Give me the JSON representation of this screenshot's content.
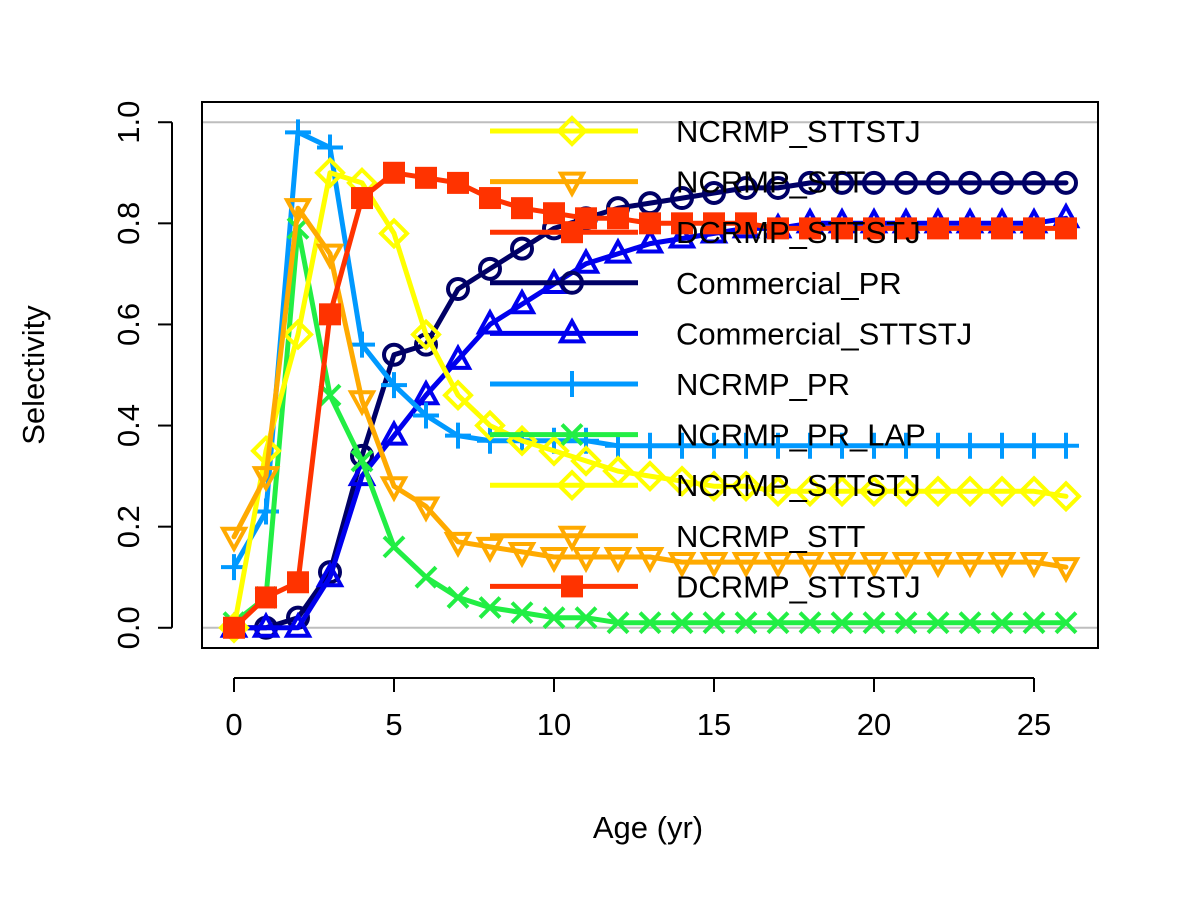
{
  "chart_data": {
    "type": "line",
    "title": "",
    "xlabel": "Age (yr)",
    "ylabel": "Selectivity",
    "xlim": [
      -1,
      27
    ],
    "ylim": [
      -0.04,
      1.04
    ],
    "xticks": [
      0,
      5,
      10,
      15,
      20,
      25
    ],
    "yticks": [
      0.0,
      0.2,
      0.4,
      0.6,
      0.8,
      1.0
    ],
    "xtick_labels": [
      "0",
      "5",
      "10",
      "15",
      "20",
      "25"
    ],
    "ytick_labels": [
      "0.0",
      "0.2",
      "0.4",
      "0.6",
      "0.8",
      "1.0"
    ],
    "hlines": [
      0,
      1
    ],
    "hline_color": "#bebebe",
    "legend_position": "top-right",
    "x": [
      0,
      1,
      2,
      3,
      4,
      5,
      6,
      7,
      8,
      9,
      10,
      11,
      12,
      13,
      14,
      15,
      16,
      17,
      18,
      19,
      20,
      21,
      22,
      23,
      24,
      25,
      26
    ],
    "series": [
      {
        "name": "Commercial_PR",
        "color": "#000066",
        "marker": "circle",
        "values": [
          0.0,
          0.0,
          0.02,
          0.11,
          0.34,
          0.54,
          0.56,
          0.67,
          0.71,
          0.75,
          0.79,
          0.81,
          0.83,
          0.84,
          0.85,
          0.86,
          0.87,
          0.87,
          0.88,
          0.88,
          0.88,
          0.88,
          0.88,
          0.88,
          0.88,
          0.88,
          0.88
        ]
      },
      {
        "name": "Commercial_STTSTJ",
        "color": "#0000ee",
        "marker": "triangle-up",
        "values": [
          0.0,
          0.0,
          0.0,
          0.1,
          0.3,
          0.38,
          0.46,
          0.53,
          0.6,
          0.64,
          0.68,
          0.72,
          0.74,
          0.76,
          0.77,
          0.78,
          0.79,
          0.79,
          0.8,
          0.8,
          0.8,
          0.8,
          0.8,
          0.8,
          0.8,
          0.8,
          0.81
        ]
      },
      {
        "name": "NCRMP_PR",
        "color": "#0099ff",
        "marker": "plus",
        "values": [
          0.12,
          0.23,
          0.98,
          0.95,
          0.56,
          0.48,
          0.42,
          0.38,
          0.37,
          0.37,
          0.37,
          0.37,
          0.36,
          0.36,
          0.36,
          0.36,
          0.36,
          0.36,
          0.36,
          0.36,
          0.36,
          0.36,
          0.36,
          0.36,
          0.36,
          0.36,
          0.36
        ]
      },
      {
        "name": "NCRMP_PR_LAP",
        "color": "#22ee44",
        "marker": "cross",
        "values": [
          0.01,
          0.06,
          0.79,
          0.46,
          0.33,
          0.16,
          0.1,
          0.06,
          0.04,
          0.03,
          0.02,
          0.02,
          0.01,
          0.01,
          0.01,
          0.01,
          0.01,
          0.01,
          0.01,
          0.01,
          0.01,
          0.01,
          0.01,
          0.01,
          0.01,
          0.01,
          0.01
        ]
      },
      {
        "name": "NCRMP_STTSTJ",
        "color": "#ffff00",
        "marker": "diamond",
        "values": [
          0.0,
          0.35,
          0.58,
          0.9,
          0.88,
          0.78,
          0.58,
          0.46,
          0.4,
          0.37,
          0.35,
          0.33,
          0.31,
          0.3,
          0.29,
          0.28,
          0.28,
          0.27,
          0.27,
          0.27,
          0.27,
          0.27,
          0.27,
          0.27,
          0.27,
          0.27,
          0.26
        ]
      },
      {
        "name": "NCRMP_STT",
        "color": "#ffaa00",
        "marker": "triangle-down",
        "values": [
          0.18,
          0.3,
          0.83,
          0.74,
          0.45,
          0.28,
          0.24,
          0.17,
          0.16,
          0.15,
          0.14,
          0.14,
          0.14,
          0.14,
          0.13,
          0.13,
          0.13,
          0.13,
          0.13,
          0.13,
          0.13,
          0.13,
          0.13,
          0.13,
          0.13,
          0.13,
          0.12
        ]
      },
      {
        "name": "DCRMP_STTSTJ",
        "color": "#ff3300",
        "marker": "square",
        "values": [
          0.0,
          0.06,
          0.09,
          0.62,
          0.85,
          0.9,
          0.89,
          0.88,
          0.85,
          0.83,
          0.82,
          0.81,
          0.81,
          0.8,
          0.8,
          0.8,
          0.8,
          0.79,
          0.79,
          0.79,
          0.79,
          0.79,
          0.79,
          0.79,
          0.79,
          0.79,
          0.79
        ]
      }
    ],
    "legend": [
      {
        "label": "NCRMP_STTSTJ",
        "color": "#ffff00",
        "marker": "diamond"
      },
      {
        "label": "NCRMP_STT",
        "color": "#ffaa00",
        "marker": "triangle-down"
      },
      {
        "label": "DCRMP_STTSTJ",
        "color": "#ff3300",
        "marker": "square"
      },
      {
        "label": "Commercial_PR",
        "color": "#000066",
        "marker": "circle"
      },
      {
        "label": "Commercial_STTSTJ",
        "color": "#0000ee",
        "marker": "triangle-up"
      },
      {
        "label": "NCRMP_PR",
        "color": "#0099ff",
        "marker": "plus"
      },
      {
        "label": "NCRMP_PR_LAP",
        "color": "#22ee44",
        "marker": "cross"
      },
      {
        "label": "NCRMP_STTSTJ",
        "color": "#ffff00",
        "marker": "diamond"
      },
      {
        "label": "NCRMP_STT",
        "color": "#ffaa00",
        "marker": "triangle-down"
      },
      {
        "label": "DCRMP_STTSTJ",
        "color": "#ff3300",
        "marker": "square"
      }
    ]
  }
}
